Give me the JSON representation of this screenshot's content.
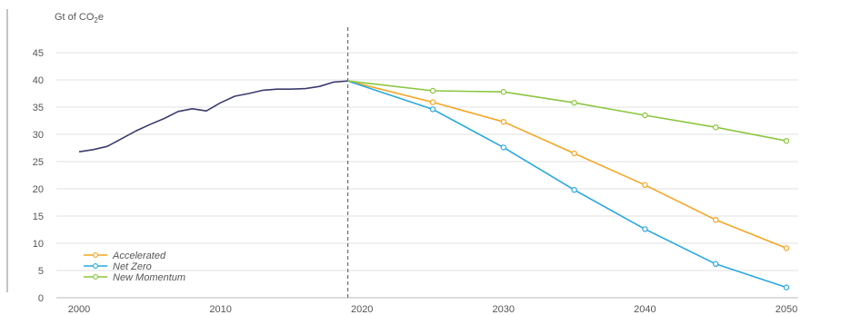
{
  "chart_data": {
    "type": "line",
    "ylabel": "Gt of CO₂e",
    "ylim": [
      0,
      45
    ],
    "xlim": [
      2000,
      2050
    ],
    "y_ticks": [
      "0",
      "5",
      "10",
      "15",
      "20",
      "25",
      "30",
      "35",
      "40",
      "45"
    ],
    "x_ticks": [
      "2000",
      "2010",
      "2020",
      "2030",
      "2040",
      "2050"
    ],
    "grid": true,
    "divider_x": 2019,
    "legend_position": "bottom-left",
    "colors": {
      "historical": "#3b3b6e",
      "Accelerated": "#f5a623",
      "Net Zero": "#29a8e0",
      "New Momentum": "#8cc63f",
      "grid": "#e2e2e2",
      "divider": "#555555"
    },
    "historical": {
      "x": [
        2000,
        2001,
        2002,
        2003,
        2004,
        2005,
        2006,
        2007,
        2008,
        2009,
        2010,
        2011,
        2012,
        2013,
        2014,
        2015,
        2016,
        2017,
        2018,
        2019
      ],
      "y": [
        26.8,
        27.2,
        27.8,
        29.2,
        30.6,
        31.8,
        32.9,
        34.2,
        34.7,
        34.3,
        35.8,
        37.0,
        37.5,
        38.1,
        38.3,
        38.3,
        38.4,
        38.8,
        39.6,
        39.8
      ]
    },
    "series": [
      {
        "name": "Accelerated",
        "x": [
          2019,
          2025,
          2030,
          2035,
          2040,
          2045,
          2050
        ],
        "y": [
          39.8,
          35.9,
          32.3,
          26.5,
          20.7,
          14.3,
          9.1
        ]
      },
      {
        "name": "Net Zero",
        "x": [
          2019,
          2025,
          2030,
          2035,
          2040,
          2045,
          2050
        ],
        "y": [
          39.8,
          34.6,
          27.6,
          19.8,
          12.6,
          6.2,
          1.9
        ]
      },
      {
        "name": "New Momentum",
        "x": [
          2019,
          2025,
          2030,
          2035,
          2040,
          2045,
          2050
        ],
        "y": [
          39.8,
          38.0,
          37.8,
          35.8,
          33.5,
          31.3,
          28.8
        ]
      }
    ]
  }
}
